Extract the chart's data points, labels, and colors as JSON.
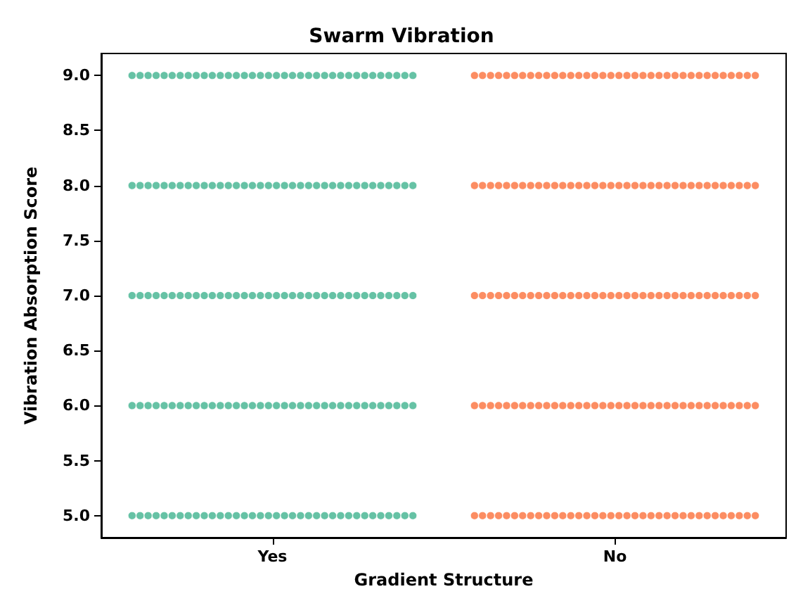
{
  "chart_data": {
    "type": "scatter",
    "title": "Swarm Vibration",
    "xlabel": "Gradient Structure",
    "ylabel": "Vibration Absorption Score",
    "categories": [
      "Yes",
      "No"
    ],
    "marker": "circle",
    "ylim": [
      4.8,
      9.2
    ],
    "yticks": [
      {
        "value": 5,
        "label": "5.0"
      },
      {
        "value": 5.5,
        "label": "5.5"
      },
      {
        "value": 6,
        "label": "6.0"
      },
      {
        "value": 6.5,
        "label": "6.5"
      },
      {
        "value": 7,
        "label": "7.0"
      },
      {
        "value": 7.5,
        "label": "7.5"
      },
      {
        "value": 8,
        "label": "8.0"
      },
      {
        "value": 8.5,
        "label": "8.5"
      },
      {
        "value": 9,
        "label": "9.0"
      }
    ],
    "series": [
      {
        "color": "#66c2a5",
        "x": [
          "Yes",
          "Yes",
          "Yes",
          "Yes",
          "Yes",
          "Yes",
          "Yes",
          "Yes",
          "Yes",
          "Yes",
          "Yes",
          "Yes",
          "Yes",
          "Yes",
          "Yes",
          "Yes",
          "Yes",
          "Yes",
          "Yes",
          "Yes",
          "Yes",
          "Yes",
          "Yes",
          "Yes",
          "Yes",
          "Yes",
          "Yes",
          "Yes",
          "Yes",
          "Yes",
          "Yes",
          "Yes",
          "Yes",
          "Yes",
          "Yes",
          "Yes",
          "Yes",
          "Yes",
          "Yes",
          "Yes",
          "Yes",
          "Yes",
          "Yes",
          "Yes",
          "Yes",
          "Yes",
          "Yes",
          "Yes",
          "Yes",
          "Yes",
          "Yes",
          "Yes",
          "Yes",
          "Yes",
          "Yes",
          "Yes",
          "Yes",
          "Yes",
          "Yes",
          "Yes",
          "Yes",
          "Yes",
          "Yes",
          "Yes",
          "Yes",
          "Yes",
          "Yes",
          "Yes",
          "Yes",
          "Yes",
          "Yes",
          "Yes",
          "Yes",
          "Yes",
          "Yes",
          "Yes",
          "Yes",
          "Yes",
          "Yes",
          "Yes",
          "Yes",
          "Yes",
          "Yes",
          "Yes",
          "Yes",
          "Yes",
          "Yes",
          "Yes",
          "Yes",
          "Yes",
          "Yes",
          "Yes",
          "Yes",
          "Yes",
          "Yes",
          "Yes",
          "Yes",
          "Yes",
          "Yes",
          "Yes",
          "Yes",
          "Yes",
          "Yes",
          "Yes",
          "Yes",
          "Yes",
          "Yes",
          "Yes",
          "Yes",
          "Yes",
          "Yes",
          "Yes",
          "Yes",
          "Yes",
          "Yes",
          "Yes",
          "Yes",
          "Yes",
          "Yes",
          "Yes",
          "Yes",
          "Yes",
          "Yes",
          "Yes",
          "Yes",
          "Yes",
          "Yes",
          "Yes",
          "Yes",
          "Yes",
          "Yes",
          "Yes",
          "Yes",
          "Yes",
          "Yes",
          "Yes",
          "Yes",
          "Yes",
          "Yes",
          "Yes",
          "Yes",
          "Yes",
          "Yes",
          "Yes",
          "Yes",
          "Yes",
          "Yes",
          "Yes",
          "Yes",
          "Yes",
          "Yes",
          "Yes",
          "Yes",
          "Yes",
          "Yes",
          "Yes",
          "Yes",
          "Yes",
          "Yes",
          "Yes",
          "Yes",
          "Yes",
          "Yes",
          "Yes",
          "Yes",
          "Yes",
          "Yes",
          "Yes",
          "Yes",
          "Yes",
          "Yes",
          "Yes",
          "Yes",
          "Yes",
          "Yes",
          "Yes",
          "Yes",
          "Yes",
          "Yes",
          "Yes"
        ],
        "values": [
          5,
          5,
          5,
          5,
          5,
          5,
          5,
          5,
          5,
          5,
          5,
          5,
          5,
          5,
          5,
          5,
          5,
          5,
          5,
          5,
          5,
          5,
          5,
          5,
          5,
          5,
          5,
          5,
          5,
          5,
          5,
          5,
          5,
          5,
          5,
          5,
          6,
          6,
          6,
          6,
          6,
          6,
          6,
          6,
          6,
          6,
          6,
          6,
          6,
          6,
          6,
          6,
          6,
          6,
          6,
          6,
          6,
          6,
          6,
          6,
          6,
          6,
          6,
          6,
          6,
          6,
          6,
          6,
          6,
          6,
          6,
          6,
          7,
          7,
          7,
          7,
          7,
          7,
          7,
          7,
          7,
          7,
          7,
          7,
          7,
          7,
          7,
          7,
          7,
          7,
          7,
          7,
          7,
          7,
          7,
          7,
          7,
          7,
          7,
          7,
          7,
          7,
          7,
          7,
          7,
          7,
          7,
          7,
          8,
          8,
          8,
          8,
          8,
          8,
          8,
          8,
          8,
          8,
          8,
          8,
          8,
          8,
          8,
          8,
          8,
          8,
          8,
          8,
          8,
          8,
          8,
          8,
          8,
          8,
          8,
          8,
          8,
          8,
          8,
          8,
          8,
          8,
          8,
          8,
          9,
          9,
          9,
          9,
          9,
          9,
          9,
          9,
          9,
          9,
          9,
          9,
          9,
          9,
          9,
          9,
          9,
          9,
          9,
          9,
          9,
          9,
          9,
          9,
          9,
          9,
          9,
          9,
          9,
          9,
          9,
          9,
          9,
          9,
          9,
          9
        ]
      },
      {
        "color": "#fc8d62",
        "x": [
          "No",
          "No",
          "No",
          "No",
          "No",
          "No",
          "No",
          "No",
          "No",
          "No",
          "No",
          "No",
          "No",
          "No",
          "No",
          "No",
          "No",
          "No",
          "No",
          "No",
          "No",
          "No",
          "No",
          "No",
          "No",
          "No",
          "No",
          "No",
          "No",
          "No",
          "No",
          "No",
          "No",
          "No",
          "No",
          "No",
          "No",
          "No",
          "No",
          "No",
          "No",
          "No",
          "No",
          "No",
          "No",
          "No",
          "No",
          "No",
          "No",
          "No",
          "No",
          "No",
          "No",
          "No",
          "No",
          "No",
          "No",
          "No",
          "No",
          "No",
          "No",
          "No",
          "No",
          "No",
          "No",
          "No",
          "No",
          "No",
          "No",
          "No",
          "No",
          "No",
          "No",
          "No",
          "No",
          "No",
          "No",
          "No",
          "No",
          "No",
          "No",
          "No",
          "No",
          "No",
          "No",
          "No",
          "No",
          "No",
          "No",
          "No",
          "No",
          "No",
          "No",
          "No",
          "No",
          "No",
          "No",
          "No",
          "No",
          "No",
          "No",
          "No",
          "No",
          "No",
          "No",
          "No",
          "No",
          "No",
          "No",
          "No",
          "No",
          "No",
          "No",
          "No",
          "No",
          "No",
          "No",
          "No",
          "No",
          "No",
          "No",
          "No",
          "No",
          "No",
          "No",
          "No",
          "No",
          "No",
          "No",
          "No",
          "No",
          "No",
          "No",
          "No",
          "No",
          "No",
          "No",
          "No",
          "No",
          "No",
          "No",
          "No",
          "No",
          "No",
          "No",
          "No",
          "No",
          "No",
          "No",
          "No",
          "No",
          "No",
          "No",
          "No",
          "No",
          "No",
          "No",
          "No",
          "No",
          "No",
          "No",
          "No",
          "No",
          "No",
          "No",
          "No",
          "No",
          "No",
          "No",
          "No",
          "No",
          "No",
          "No",
          "No",
          "No",
          "No",
          "No",
          "No",
          "No",
          "No"
        ],
        "values": [
          5,
          5,
          5,
          5,
          5,
          5,
          5,
          5,
          5,
          5,
          5,
          5,
          5,
          5,
          5,
          5,
          5,
          5,
          5,
          5,
          5,
          5,
          5,
          5,
          5,
          5,
          5,
          5,
          5,
          5,
          5,
          5,
          5,
          5,
          5,
          5,
          6,
          6,
          6,
          6,
          6,
          6,
          6,
          6,
          6,
          6,
          6,
          6,
          6,
          6,
          6,
          6,
          6,
          6,
          6,
          6,
          6,
          6,
          6,
          6,
          6,
          6,
          6,
          6,
          6,
          6,
          6,
          6,
          6,
          6,
          6,
          6,
          7,
          7,
          7,
          7,
          7,
          7,
          7,
          7,
          7,
          7,
          7,
          7,
          7,
          7,
          7,
          7,
          7,
          7,
          7,
          7,
          7,
          7,
          7,
          7,
          7,
          7,
          7,
          7,
          7,
          7,
          7,
          7,
          7,
          7,
          7,
          7,
          8,
          8,
          8,
          8,
          8,
          8,
          8,
          8,
          8,
          8,
          8,
          8,
          8,
          8,
          8,
          8,
          8,
          8,
          8,
          8,
          8,
          8,
          8,
          8,
          8,
          8,
          8,
          8,
          8,
          8,
          8,
          8,
          8,
          8,
          8,
          8,
          9,
          9,
          9,
          9,
          9,
          9,
          9,
          9,
          9,
          9,
          9,
          9,
          9,
          9,
          9,
          9,
          9,
          9,
          9,
          9,
          9,
          9,
          9,
          9,
          9,
          9,
          9,
          9,
          9,
          9,
          9,
          9,
          9,
          9,
          9,
          9
        ]
      }
    ]
  }
}
